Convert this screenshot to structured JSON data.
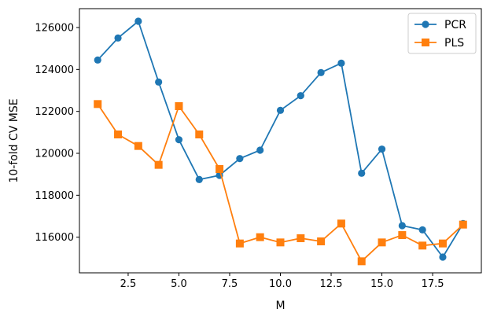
{
  "chart_data": {
    "type": "line",
    "title": "",
    "xlabel": "M",
    "ylabel": "10-fold CV MSE",
    "xlim": [
      0.1,
      19.9
    ],
    "ylim": [
      114300,
      126900
    ],
    "xticks": [
      2.5,
      5.0,
      7.5,
      10.0,
      12.5,
      15.0,
      17.5
    ],
    "xtick_labels": [
      "2.5",
      "5.0",
      "7.5",
      "10.0",
      "12.5",
      "15.0",
      "17.5"
    ],
    "yticks": [
      116000,
      118000,
      120000,
      122000,
      124000,
      126000
    ],
    "ytick_labels": [
      "116000",
      "118000",
      "120000",
      "122000",
      "124000",
      "126000"
    ],
    "grid": false,
    "legend_position": "top-right",
    "x": [
      1,
      2,
      3,
      4,
      5,
      6,
      7,
      8,
      9,
      10,
      11,
      12,
      13,
      14,
      15,
      16,
      17,
      18,
      19
    ],
    "series": [
      {
        "name": "PCR",
        "marker": "circle",
        "color": "#1f77b4",
        "values": [
          124450,
          125500,
          126300,
          123400,
          120650,
          118750,
          118950,
          119750,
          120150,
          122050,
          122750,
          123850,
          124300,
          119050,
          120200,
          116550,
          116350,
          115050,
          116650
        ]
      },
      {
        "name": "PLS",
        "marker": "square",
        "color": "#ff7f0e",
        "values": [
          122350,
          120900,
          120350,
          119450,
          122250,
          120900,
          119250,
          115700,
          116000,
          115750,
          115950,
          115800,
          116650,
          114850,
          115750,
          116100,
          115600,
          115700,
          116600
        ]
      }
    ]
  }
}
